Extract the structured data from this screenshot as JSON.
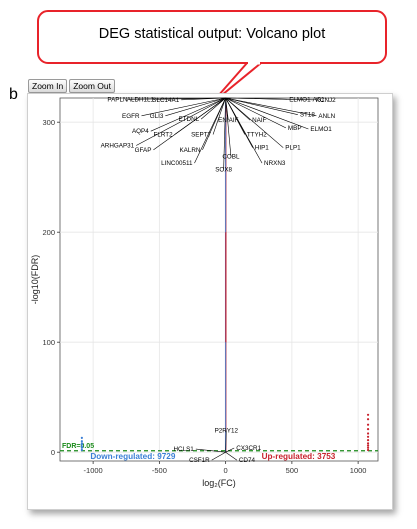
{
  "callout": {
    "text": "DEG statistical output: Volcano plot"
  },
  "panel_letter": "b",
  "toolbar": {
    "zoom_in_label": "Zoom In",
    "zoom_out_label": "Zoom Out"
  },
  "colors": {
    "down": "#3b7fd6",
    "up": "#c8202c",
    "threshold": "#1a8a1a",
    "callout_border": "#e8232a",
    "panel_bg": "#ffffff",
    "grid": "#e6e6e6"
  },
  "chart_data": {
    "type": "scatter",
    "title": "",
    "xlabel": "log₂(FC)",
    "ylabel": "-log10(FDR)",
    "xlim": [
      -1250,
      1150
    ],
    "ylim": [
      -8,
      322
    ],
    "xticks": [
      -1000,
      -500,
      0,
      500,
      1000
    ],
    "yticks": [
      0,
      100,
      200,
      300
    ],
    "grid": true,
    "threshold": {
      "label": "FDR=0.05",
      "y": 1.3
    },
    "summary": {
      "down_label": "Down-regulated: 9729",
      "up_label": "Up-regulated: 3753"
    },
    "series": [
      {
        "points": [
          [
            -1085,
            4
          ],
          [
            -1085,
            7
          ],
          [
            -1085,
            10
          ],
          [
            -1085,
            13
          ],
          [
            -1085,
            2
          ],
          [
            -1085,
            5
          ],
          [
            -1085,
            8
          ]
        ]
      },
      {
        "points": [
          [
            1075,
            2
          ],
          [
            1075,
            4
          ],
          [
            1075,
            6
          ],
          [
            1075,
            8
          ],
          [
            1075,
            11
          ],
          [
            1075,
            14
          ],
          [
            1075,
            17
          ],
          [
            1075,
            21
          ],
          [
            1075,
            25
          ],
          [
            1075,
            30
          ],
          [
            1075,
            34
          ]
        ]
      }
    ],
    "gene_labels": [
      {
        "text": "PAPLN",
        "x": -740,
        "y": 319
      },
      {
        "text": "ALDH1L1",
        "x": -540,
        "y": 319
      },
      {
        "text": "SLC14A1",
        "x": -350,
        "y": 318.5
      },
      {
        "text": "EGFR",
        "x": -650,
        "y": 304
      },
      {
        "text": "GLI3",
        "x": -470,
        "y": 304
      },
      {
        "text": "ETDNL",
        "x": -200,
        "y": 301
      },
      {
        "text": "AQP4",
        "x": -580,
        "y": 290
      },
      {
        "text": "FLRT2",
        "x": -400,
        "y": 287
      },
      {
        "text": "SEPT7",
        "x": -110,
        "y": 287
      },
      {
        "text": "ARHGAP31",
        "x": -690,
        "y": 277
      },
      {
        "text": "GFAP",
        "x": -560,
        "y": 273
      },
      {
        "text": "KALRN",
        "x": -190,
        "y": 273
      },
      {
        "text": "LINC00511",
        "x": -250,
        "y": 261
      },
      {
        "text": "SOX8",
        "x": -15,
        "y": 255
      },
      {
        "text": "COBL",
        "x": 40,
        "y": 267
      },
      {
        "text": "TTYH2",
        "x": 160,
        "y": 287
      },
      {
        "text": "ENIAIF",
        "x": 20,
        "y": 300
      },
      {
        "text": "NAIF",
        "x": 200,
        "y": 300
      },
      {
        "text": "ELMO1-AS1",
        "x": 480,
        "y": 319
      },
      {
        "text": "KCNJ2",
        "x": 680,
        "y": 318.5
      },
      {
        "text": "ST18",
        "x": 560,
        "y": 305
      },
      {
        "text": "ANLN",
        "x": 700,
        "y": 304
      },
      {
        "text": "MBP",
        "x": 470,
        "y": 293
      },
      {
        "text": "ELMO1",
        "x": 640,
        "y": 292
      },
      {
        "text": "HIP1",
        "x": 220,
        "y": 275
      },
      {
        "text": "PLP1",
        "x": 450,
        "y": 275
      },
      {
        "text": "NRXN3",
        "x": 290,
        "y": 261
      },
      {
        "text": "P2RY12",
        "x": 5,
        "y": 18
      },
      {
        "text": "HCLS1",
        "x": -240,
        "y": 1
      },
      {
        "text": "CX3CR1",
        "x": 80,
        "y": 2
      },
      {
        "text": "CSF1R",
        "x": -120,
        "y": -9
      },
      {
        "text": "CD74",
        "x": 100,
        "y": -9
      }
    ]
  }
}
